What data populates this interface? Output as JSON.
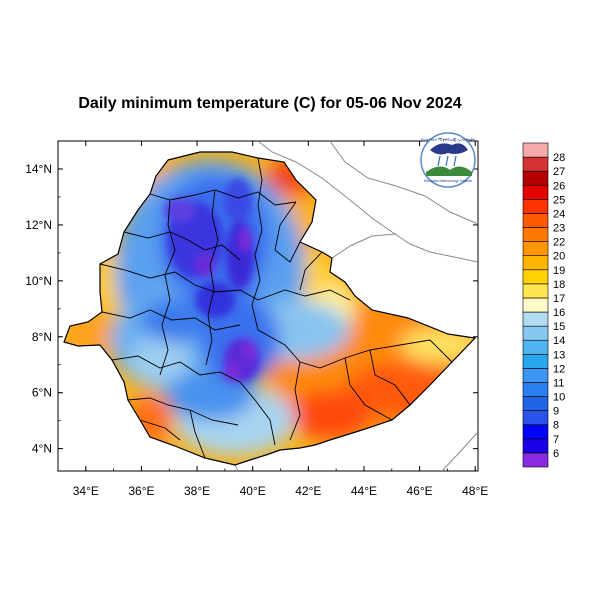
{
  "title": "Daily minimum temperature (C) for 05-06 Nov 2024",
  "logo": {
    "text_top": "የኢትዮጵያ ሚቲዎሮሎጂ ኢንስቲትዩት",
    "text_bottom": "Ethiopian Meteorology Institute"
  },
  "map": {
    "lon_ticks": [
      "34°E",
      "36°E",
      "38°E",
      "40°E",
      "42°E",
      "44°E",
      "46°E",
      "48°E"
    ],
    "lat_ticks": [
      "14°N",
      "12°N",
      "10°N",
      "8°N",
      "6°N",
      "4°N"
    ],
    "lon_range": [
      33,
      48.1
    ],
    "lat_range": [
      3.2,
      15
    ]
  },
  "legend": {
    "levels": [
      "6",
      "7",
      "8",
      "9",
      "10",
      "11",
      "12",
      "13",
      "14",
      "15",
      "16",
      "17",
      "18",
      "19",
      "20",
      "22",
      "23",
      "24",
      "25",
      "26",
      "27",
      "28"
    ],
    "colors": [
      "#8a2be2",
      "#1a00e6",
      "#0000ff",
      "#2a52e8",
      "#1e64e6",
      "#2a80f0",
      "#3c96f5",
      "#2aa8ee",
      "#50b4f0",
      "#87c8f0",
      "#b4dcf0",
      "#fffac8",
      "#ffe650",
      "#ffd200",
      "#ffb400",
      "#ff9600",
      "#ff7800",
      "#ff5a00",
      "#ff3200",
      "#e60000",
      "#b40000",
      "#d23232",
      "#f5aaaa"
    ]
  }
}
